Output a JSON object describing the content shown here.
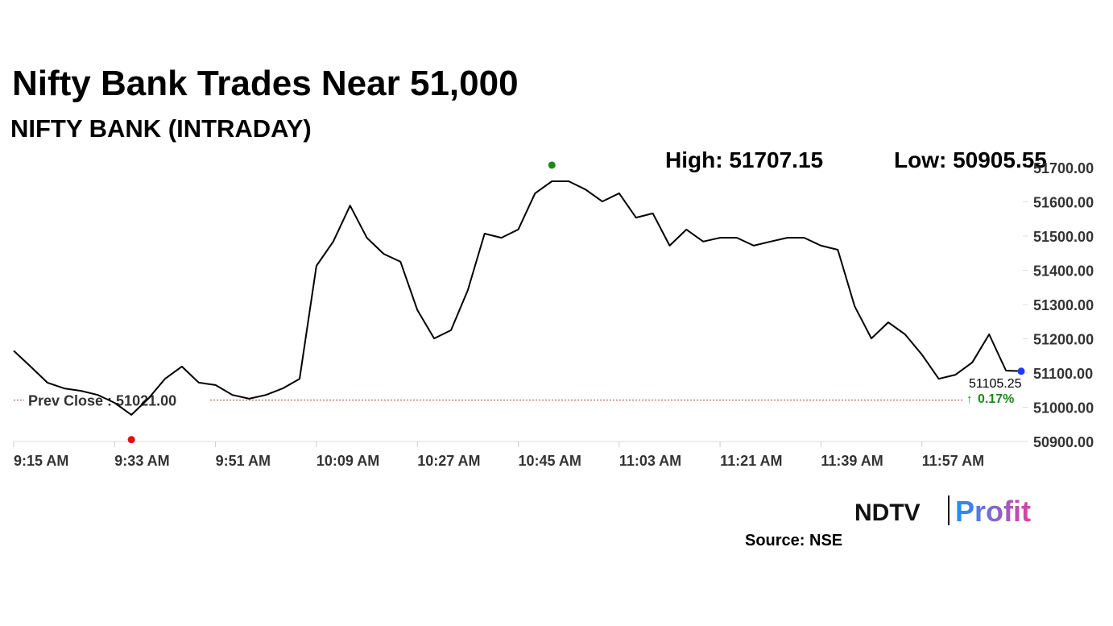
{
  "chart_data": {
    "type": "line",
    "title": "Nifty Bank Trades Near 51,000",
    "subtitle": "NIFTY BANK (INTRADAY)",
    "high_label": "High:",
    "high": 51707.15,
    "low_label": "Low:",
    "low": 50905.55,
    "prev_close": {
      "value": 51021,
      "label": "Prev Close : 51021.00"
    },
    "last": 51105.25,
    "change": {
      "value": 0.17,
      "label": "0.17%"
    },
    "color": "#000000",
    "x": [
      "9:15 AM",
      "9:18 AM",
      "9:21 AM",
      "9:24 AM",
      "9:27 AM",
      "9:30 AM",
      "9:33 AM",
      "9:36 AM",
      "9:39 AM",
      "9:42 AM",
      "9:45 AM",
      "9:48 AM",
      "9:51 AM",
      "9:54 AM",
      "9:57 AM",
      "10:00 AM",
      "10:03 AM",
      "10:06 AM",
      "10:09 AM",
      "10:12 AM",
      "10:15 AM",
      "10:18 AM",
      "10:21 AM",
      "10:24 AM",
      "10:27 AM",
      "10:30 AM",
      "10:33 AM",
      "10:36 AM",
      "10:39 AM",
      "10:42 AM",
      "10:45 AM",
      "10:48 AM",
      "10:51 AM",
      "10:54 AM",
      "10:57 AM",
      "11:00 AM",
      "11:03 AM",
      "11:06 AM",
      "11:09 AM",
      "11:12 AM",
      "11:15 AM",
      "11:18 AM",
      "11:21 AM",
      "11:24 AM",
      "11:27 AM",
      "11:30 AM",
      "11:33 AM",
      "11:36 AM",
      "11:39 AM",
      "11:42 AM",
      "11:45 AM",
      "11:48 AM",
      "11:51 AM",
      "11:54 AM",
      "11:57 AM",
      "12:00 PM",
      "12:03 PM",
      "12:06 PM",
      "12:09 PM",
      "12:12 PM",
      "12:15 PM"
    ],
    "values": [
      51165,
      51119,
      51072,
      51055,
      51048,
      51036,
      51013,
      50978,
      51025,
      51083,
      51119,
      51072,
      51065,
      51036,
      51025,
      51036,
      51055,
      51083,
      51413,
      51484,
      51589,
      51495,
      51448,
      51425,
      51284,
      51201,
      51225,
      51342,
      51507,
      51495,
      51519,
      51625,
      51660,
      51660,
      51636,
      51601,
      51625,
      51554,
      51566,
      51472,
      51519,
      51484,
      51495,
      51495,
      51472,
      51484,
      51495,
      51495,
      51472,
      51460,
      51295,
      51201,
      51248,
      51213,
      51154,
      51083,
      51095,
      51131,
      51213,
      51107,
      51105.25
    ],
    "xlim": [
      "9:15 AM",
      "12:15 PM"
    ],
    "xticks": [
      "9:15 AM",
      "9:33 AM",
      "9:51 AM",
      "10:09 AM",
      "10:27 AM",
      "10:45 AM",
      "11:03 AM",
      "11:21 AM",
      "11:39 AM",
      "11:57 AM"
    ],
    "ylim": [
      50900,
      51700
    ],
    "yticks": [
      {
        "value": 50900,
        "label": "50900.00"
      },
      {
        "value": 51000,
        "label": "51000.00"
      },
      {
        "value": 51100,
        "label": "51100.00"
      },
      {
        "value": 51200,
        "label": "51200.00"
      },
      {
        "value": 51300,
        "label": "51300.00"
      },
      {
        "value": 51400,
        "label": "51400.00"
      },
      {
        "value": 51500,
        "label": "51500.00"
      },
      {
        "value": 51600,
        "label": "51600.00"
      },
      {
        "value": 51700,
        "label": "51700.00"
      }
    ]
  },
  "logo": {
    "brand": "NDTV",
    "product": "Profit"
  },
  "source": "Source: NSE"
}
